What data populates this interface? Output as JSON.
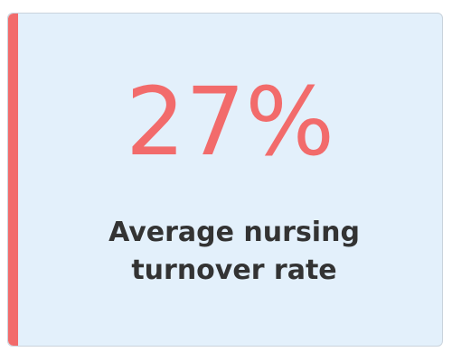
{
  "stat_card": {
    "value": "27%",
    "label": "Average nursing turnover rate"
  }
}
